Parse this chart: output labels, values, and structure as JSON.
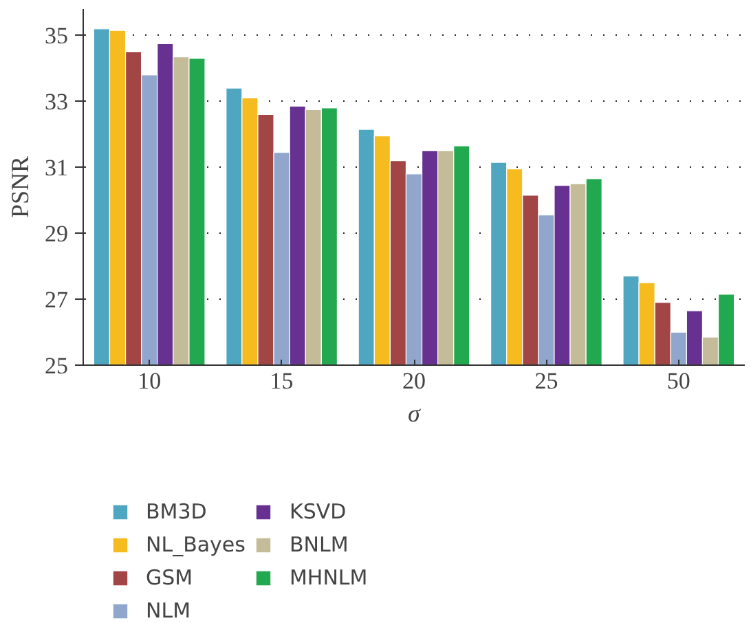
{
  "chart_data": {
    "type": "bar",
    "xlabel": "σ",
    "ylabel": "PSNR",
    "categories": [
      "10",
      "15",
      "20",
      "25",
      "50"
    ],
    "series": [
      {
        "name": "BM3D",
        "color": "#4ea6c0",
        "values": [
          35.2,
          33.4,
          32.15,
          31.15,
          27.7
        ]
      },
      {
        "name": "NL_Bayes",
        "color": "#f5bb1f",
        "values": [
          35.15,
          33.1,
          31.95,
          30.95,
          27.5
        ]
      },
      {
        "name": "GSM",
        "color": "#a24545",
        "values": [
          34.5,
          32.6,
          31.2,
          30.15,
          26.9
        ]
      },
      {
        "name": "NLM",
        "color": "#90a6cd",
        "values": [
          33.8,
          31.45,
          30.8,
          29.55,
          26.0
        ]
      },
      {
        "name": "KSVD",
        "color": "#673191",
        "values": [
          34.75,
          32.85,
          31.5,
          30.45,
          26.65
        ]
      },
      {
        "name": "BNLM",
        "color": "#c4bb98",
        "values": [
          34.35,
          32.75,
          31.5,
          30.5,
          25.85
        ]
      },
      {
        "name": "MHNLM",
        "color": "#22a84f",
        "values": [
          34.3,
          32.8,
          31.65,
          30.65,
          27.15
        ]
      }
    ],
    "ylim": [
      25,
      35.8
    ],
    "yticks": [
      25,
      27,
      29,
      31,
      33,
      35
    ],
    "grid": "y",
    "legend": "bottom"
  }
}
